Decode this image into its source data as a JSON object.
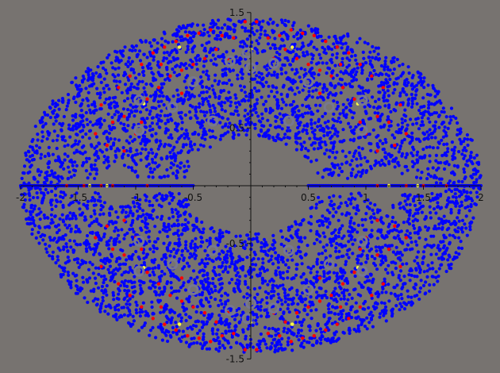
{
  "chart_data": {
    "type": "scatter",
    "title": "",
    "xlabel": "",
    "ylabel": "",
    "xlim": [
      -2.0,
      2.0
    ],
    "ylim": [
      -1.5,
      1.5
    ],
    "x_ticks": [
      {
        "value": -2,
        "label": "-2"
      },
      {
        "value": -1.5,
        "label": "-1.5"
      },
      {
        "value": -1,
        "label": "-1"
      },
      {
        "value": -0.5,
        "label": "-0.5"
      },
      {
        "value": 0.5,
        "label": "0.5"
      },
      {
        "value": 1,
        "label": "1"
      },
      {
        "value": 1.5,
        "label": "1.5"
      },
      {
        "value": 2,
        "label": "2"
      }
    ],
    "y_ticks": [
      {
        "value": 1.5,
        "label": "1.5"
      },
      {
        "value": 0.5,
        "label": "0.5"
      },
      {
        "value": -0.5,
        "label": "-0.5"
      },
      {
        "value": -1.5,
        "label": "-1.5"
      }
    ],
    "grid": false,
    "colors": {
      "background": "#777370",
      "axis": "#111111",
      "blue": "#0000ff",
      "red": "#ff0000",
      "yellow": "#ffff44",
      "hollow": "#77778f"
    },
    "series": [
      {
        "color": "blue",
        "region": "annulus",
        "r_range": [
          0.42,
          1.45
        ],
        "x_scale": 1.38
      },
      {
        "color": "blue",
        "region": "real-axis",
        "x_segments": [
          [
            -2.0,
            -0.5
          ],
          [
            0.5,
            2.0
          ]
        ]
      },
      {
        "color": "red",
        "points": [
          [
            -1.15,
            0.85
          ],
          [
            -1.05,
            0.95
          ],
          [
            -0.95,
            1.05
          ],
          [
            -0.85,
            1.15
          ],
          [
            -0.75,
            1.2
          ],
          [
            -0.65,
            1.25
          ],
          [
            -0.55,
            1.3
          ],
          [
            -0.45,
            1.32
          ],
          [
            -0.35,
            1.35
          ],
          [
            -0.25,
            1.3
          ],
          [
            -0.15,
            1.28
          ],
          [
            0.15,
            1.28
          ],
          [
            0.25,
            1.3
          ],
          [
            0.35,
            1.35
          ],
          [
            0.45,
            1.32
          ],
          [
            0.55,
            1.3
          ],
          [
            0.65,
            1.25
          ],
          [
            0.75,
            1.2
          ],
          [
            0.85,
            1.15
          ],
          [
            0.95,
            1.05
          ],
          [
            1.05,
            0.95
          ],
          [
            1.15,
            0.85
          ],
          [
            -1.2,
            0.55
          ],
          [
            -1.1,
            0.6
          ],
          [
            -0.9,
            0.75
          ],
          [
            -0.8,
            0.85
          ],
          [
            -0.7,
            0.95
          ],
          [
            -0.6,
            1.0
          ],
          [
            -0.5,
            1.05
          ],
          [
            -0.4,
            1.1
          ],
          [
            0.4,
            1.1
          ],
          [
            0.5,
            1.05
          ],
          [
            0.6,
            1.0
          ],
          [
            0.7,
            0.95
          ],
          [
            0.8,
            0.85
          ],
          [
            0.9,
            0.75
          ],
          [
            1.1,
            0.6
          ],
          [
            1.2,
            0.55
          ],
          [
            -1.25,
            0.35
          ],
          [
            -1.35,
            0.45
          ],
          [
            -1.0,
            0.45
          ],
          [
            -0.95,
            0.55
          ],
          [
            0.95,
            0.55
          ],
          [
            1.0,
            0.45
          ],
          [
            1.25,
            0.35
          ],
          [
            1.35,
            0.45
          ],
          [
            -0.3,
            1.18
          ],
          [
            0.3,
            1.18
          ],
          [
            -0.2,
            1.1
          ],
          [
            0.2,
            1.1
          ],
          [
            -0.6,
            0.8
          ],
          [
            0.6,
            0.8
          ],
          [
            -0.05,
            1.42
          ],
          [
            0.05,
            1.42
          ],
          [
            -1.3,
            0.7
          ],
          [
            1.3,
            0.7
          ],
          [
            -1.1,
            0.3
          ],
          [
            1.1,
            0.3
          ],
          [
            -0.78,
            1.05
          ],
          [
            0.78,
            1.05
          ],
          [
            -1.15,
            0.85
          ],
          [
            -1.05,
            0.95
          ],
          [
            -0.95,
            1.05
          ],
          [
            -0.85,
            1.15
          ],
          [
            -0.75,
            1.2
          ],
          [
            -0.65,
            1.25
          ],
          [
            -0.55,
            1.3
          ],
          [
            -0.45,
            1.32
          ],
          [
            -0.35,
            1.35
          ],
          [
            -0.25,
            1.3
          ],
          [
            -0.15,
            1.28
          ],
          [
            0.15,
            1.28
          ],
          [
            0.25,
            1.3
          ],
          [
            0.35,
            1.35
          ],
          [
            0.45,
            1.32
          ],
          [
            0.55,
            1.3
          ],
          [
            0.65,
            1.25
          ],
          [
            0.75,
            1.2
          ],
          [
            0.85,
            1.15
          ],
          [
            0.95,
            1.05
          ],
          [
            1.05,
            0.95
          ],
          [
            1.15,
            0.85
          ],
          [
            -1.2,
            0.55
          ],
          [
            -1.1,
            0.6
          ],
          [
            -0.9,
            0.75
          ],
          [
            -0.8,
            0.85
          ],
          [
            -0.7,
            0.95
          ],
          [
            -0.6,
            1.0
          ],
          [
            -0.5,
            1.05
          ],
          [
            -0.4,
            1.1
          ],
          [
            0.4,
            1.1
          ],
          [
            0.5,
            1.05
          ],
          [
            0.6,
            1.0
          ],
          [
            0.7,
            0.95
          ],
          [
            0.8,
            0.85
          ],
          [
            0.9,
            0.75
          ],
          [
            1.1,
            0.6
          ],
          [
            1.2,
            0.55
          ],
          [
            -1.25,
            0.35
          ],
          [
            -1.35,
            0.45
          ],
          [
            -1.0,
            0.45
          ],
          [
            -0.95,
            0.55
          ],
          [
            0.95,
            0.55
          ],
          [
            1.0,
            0.45
          ],
          [
            1.25,
            0.35
          ],
          [
            1.35,
            0.45
          ],
          [
            -0.3,
            1.18
          ],
          [
            0.3,
            1.18
          ],
          [
            -0.2,
            1.1
          ],
          [
            0.2,
            1.1
          ],
          [
            -0.6,
            0.8
          ],
          [
            0.6,
            0.8
          ],
          [
            -0.05,
            1.42
          ],
          [
            0.05,
            1.42
          ],
          [
            -1.3,
            0.7
          ],
          [
            1.3,
            0.7
          ],
          [
            -1.1,
            0.3
          ],
          [
            1.1,
            0.3
          ],
          [
            -0.78,
            1.05
          ],
          [
            0.78,
            1.05
          ],
          [
            -1.6,
            0.0
          ],
          [
            -1.45,
            0.0
          ],
          [
            -1.3,
            0.0
          ],
          [
            -1.2,
            0.0
          ],
          [
            -0.9,
            0.0
          ],
          [
            1.1,
            0.0
          ],
          [
            1.2,
            0.0
          ],
          [
            1.35,
            0.0
          ],
          [
            1.5,
            0.0
          ],
          [
            1.7,
            0.0
          ]
        ],
        "mirror_y": true
      },
      {
        "color": "yellow",
        "points": [
          [
            -0.62,
            1.2
          ],
          [
            0.0,
            1.18
          ],
          [
            0.36,
            1.2
          ],
          [
            -0.93,
            0.71
          ],
          [
            0.93,
            0.71
          ],
          [
            -0.62,
            -1.2
          ],
          [
            0.0,
            -1.18
          ],
          [
            0.36,
            -1.2
          ],
          [
            -0.93,
            -0.71
          ],
          [
            0.93,
            -0.71
          ],
          [
            -1.4,
            0.0
          ],
          [
            -1.25,
            0.0
          ],
          [
            1.2,
            0.0
          ],
          [
            1.45,
            0.0
          ]
        ]
      },
      {
        "color": "hollow",
        "points": [
          [
            -0.5,
            0.9
          ],
          [
            -0.18,
            1.08
          ],
          [
            0.0,
            1.02
          ],
          [
            0.2,
            1.06
          ],
          [
            0.5,
            0.9
          ],
          [
            -0.68,
            0.68
          ],
          [
            0.68,
            0.68
          ],
          [
            -0.97,
            0.48
          ],
          [
            0.97,
            0.48
          ],
          [
            -0.97,
            0.74
          ],
          [
            0.97,
            0.74
          ],
          [
            -0.33,
            0.56
          ],
          [
            0.33,
            0.56
          ],
          [
            -0.03,
            1.15
          ],
          [
            -0.5,
            -0.9
          ],
          [
            -0.18,
            -1.08
          ],
          [
            0.0,
            -1.02
          ],
          [
            0.2,
            -1.06
          ],
          [
            0.5,
            -0.9
          ],
          [
            -0.68,
            -0.68
          ],
          [
            0.68,
            -0.68
          ],
          [
            -0.97,
            -0.48
          ],
          [
            0.97,
            -0.48
          ],
          [
            -0.97,
            -0.74
          ],
          [
            0.97,
            -0.74
          ],
          [
            -0.33,
            -0.56
          ],
          [
            0.33,
            -0.56
          ],
          [
            -0.03,
            -1.15
          ]
        ]
      }
    ]
  }
}
